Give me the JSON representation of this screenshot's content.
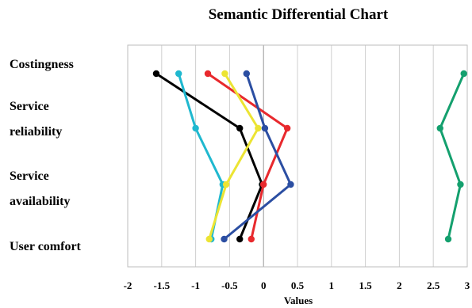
{
  "chart_data": {
    "type": "line",
    "title": "Semantic Differential Chart",
    "xlabel": "Values",
    "ylabel": "",
    "xlim": [
      -2,
      3
    ],
    "x_ticks": [
      "-2",
      "-1.5",
      "-1",
      "-0.5",
      "0",
      "0.5",
      "1",
      "1.5",
      "2",
      "2.5",
      "3"
    ],
    "categories": [
      "Costingness",
      "Service reliability",
      "Service availability",
      "User comfort"
    ],
    "grid": "vertical",
    "series": [
      {
        "color": "#000000",
        "values": [
          -1.58,
          -0.35,
          -0.02,
          -0.35
        ]
      },
      {
        "color": "#1fb8cf",
        "values": [
          -1.25,
          -1.0,
          -0.6,
          -0.77
        ]
      },
      {
        "color": "#e8292d",
        "values": [
          -0.82,
          0.35,
          0.0,
          -0.18
        ]
      },
      {
        "color": "#ece433",
        "values": [
          -0.57,
          -0.08,
          -0.55,
          -0.8
        ]
      },
      {
        "color": "#2b4ea2",
        "values": [
          -0.25,
          0.02,
          0.4,
          -0.58
        ]
      },
      {
        "color": "#14a06e",
        "values": [
          2.95,
          2.6,
          2.9,
          2.72
        ]
      }
    ]
  },
  "labels": {
    "title": "Semantic Differential Chart",
    "categories": [
      {
        "lines": [
          "Costingness"
        ]
      },
      {
        "lines": [
          "Service",
          "reliability"
        ]
      },
      {
        "lines": [
          "Service",
          "availability"
        ]
      },
      {
        "lines": [
          "User comfort"
        ]
      }
    ],
    "xlabel": "Values"
  }
}
